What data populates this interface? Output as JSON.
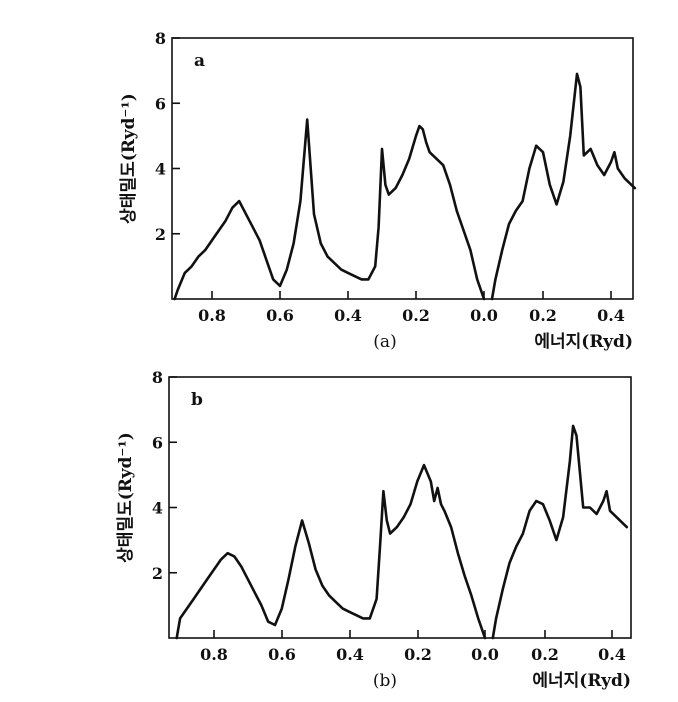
{
  "chart_data": [
    {
      "type": "line",
      "panel_label": "a",
      "caption": "(a)",
      "xlabel": "에너지(Ryd)",
      "ylabel": "상태밀도(Ryd⁻¹)",
      "ylim": [
        0,
        8
      ],
      "yticks": [
        {
          "value": 2,
          "label": "2"
        },
        {
          "value": 4,
          "label": "4"
        },
        {
          "value": 6,
          "label": "6"
        },
        {
          "value": 8,
          "label": "8"
        }
      ],
      "xticks": [
        {
          "label": "0.8"
        },
        {
          "label": "0.6"
        },
        {
          "label": "0.4"
        },
        {
          "label": "0.2"
        },
        {
          "label": "0.0"
        },
        {
          "label": "0.2"
        },
        {
          "label": "0.4"
        }
      ],
      "segments": [
        {
          "x": [
            -0.91,
            -0.9,
            -0.88,
            -0.86,
            -0.84,
            -0.82,
            -0.8,
            -0.78,
            -0.76,
            -0.74,
            -0.72,
            -0.7,
            -0.68,
            -0.66,
            -0.64,
            -0.62,
            -0.6,
            -0.58,
            -0.56,
            -0.54,
            -0.52,
            -0.5,
            -0.48,
            -0.46,
            -0.44,
            -0.42,
            -0.4,
            -0.38,
            -0.36,
            -0.34,
            -0.32,
            -0.31,
            -0.3,
            -0.29,
            -0.28,
            -0.26,
            -0.24,
            -0.22,
            -0.2,
            -0.19,
            -0.18,
            -0.17,
            -0.16,
            -0.14,
            -0.12,
            -0.1,
            -0.08,
            -0.06,
            -0.04,
            -0.02,
            0.0
          ],
          "y": [
            0.0,
            0.3,
            0.8,
            1.0,
            1.3,
            1.5,
            1.8,
            2.1,
            2.4,
            2.8,
            3.0,
            2.6,
            2.2,
            1.8,
            1.2,
            0.6,
            0.4,
            0.9,
            1.7,
            3.0,
            5.5,
            2.6,
            1.7,
            1.3,
            1.1,
            0.9,
            0.8,
            0.7,
            0.6,
            0.6,
            1.0,
            2.2,
            4.6,
            3.5,
            3.2,
            3.4,
            3.8,
            4.3,
            5.0,
            5.3,
            5.2,
            4.8,
            4.5,
            4.3,
            4.1,
            3.5,
            2.7,
            2.1,
            1.5,
            0.6,
            0.0
          ]
        },
        {
          "x": [
            0.05,
            0.06,
            0.08,
            0.1,
            0.12,
            0.14,
            0.16,
            0.18,
            0.2,
            0.22,
            0.24,
            0.26,
            0.28,
            0.3,
            0.31,
            0.32,
            0.34,
            0.36,
            0.38,
            0.4,
            0.41,
            0.42,
            0.44,
            0.46,
            0.47
          ],
          "y": [
            0.0,
            0.6,
            1.5,
            2.3,
            2.7,
            3.0,
            4.0,
            4.7,
            4.5,
            3.5,
            2.9,
            3.6,
            5.0,
            6.9,
            6.5,
            4.4,
            4.6,
            4.1,
            3.8,
            4.2,
            4.5,
            4.0,
            3.7,
            3.5,
            3.4
          ]
        }
      ]
    },
    {
      "type": "line",
      "panel_label": "b",
      "caption": "(b)",
      "xlabel": "에너지(Ryd)",
      "ylabel": "상태밀도(Ryd⁻¹)",
      "ylim": [
        0,
        8
      ],
      "yticks": [
        {
          "value": 2,
          "label": "2"
        },
        {
          "value": 4,
          "label": "4"
        },
        {
          "value": 6,
          "label": "6"
        },
        {
          "value": 8,
          "label": "8"
        }
      ],
      "xticks": [
        {
          "label": "0.8"
        },
        {
          "label": "0.6"
        },
        {
          "label": "0.4"
        },
        {
          "label": "0.2"
        },
        {
          "label": "0.0"
        },
        {
          "label": "0.2"
        },
        {
          "label": "0.4"
        }
      ],
      "segments": [
        {
          "x": [
            -0.91,
            -0.9,
            -0.88,
            -0.86,
            -0.84,
            -0.82,
            -0.8,
            -0.78,
            -0.76,
            -0.74,
            -0.72,
            -0.7,
            -0.68,
            -0.66,
            -0.64,
            -0.62,
            -0.6,
            -0.58,
            -0.56,
            -0.54,
            -0.52,
            -0.5,
            -0.48,
            -0.46,
            -0.44,
            -0.42,
            -0.4,
            -0.38,
            -0.36,
            -0.34,
            -0.32,
            -0.31,
            -0.3,
            -0.29,
            -0.28,
            -0.26,
            -0.24,
            -0.22,
            -0.2,
            -0.18,
            -0.16,
            -0.15,
            -0.14,
            -0.13,
            -0.12,
            -0.1,
            -0.08,
            -0.06,
            -0.04,
            -0.02,
            0.0
          ],
          "y": [
            0.0,
            0.6,
            0.9,
            1.2,
            1.5,
            1.8,
            2.1,
            2.4,
            2.6,
            2.5,
            2.2,
            1.8,
            1.4,
            1.0,
            0.5,
            0.4,
            0.9,
            1.8,
            2.8,
            3.6,
            2.9,
            2.1,
            1.6,
            1.3,
            1.1,
            0.9,
            0.8,
            0.7,
            0.6,
            0.6,
            1.2,
            2.8,
            4.5,
            3.6,
            3.2,
            3.4,
            3.7,
            4.1,
            4.8,
            5.3,
            4.8,
            4.2,
            4.6,
            4.1,
            3.9,
            3.4,
            2.6,
            1.9,
            1.3,
            0.6,
            0.0
          ]
        },
        {
          "x": [
            0.05,
            0.06,
            0.08,
            0.1,
            0.12,
            0.14,
            0.16,
            0.18,
            0.2,
            0.22,
            0.24,
            0.26,
            0.28,
            0.29,
            0.3,
            0.32,
            0.34,
            0.36,
            0.38,
            0.39,
            0.4,
            0.42,
            0.44,
            0.45
          ],
          "y": [
            0.0,
            0.6,
            1.5,
            2.3,
            2.8,
            3.2,
            3.9,
            4.2,
            4.1,
            3.6,
            3.0,
            3.7,
            5.4,
            6.5,
            6.2,
            4.0,
            4.0,
            3.8,
            4.2,
            4.5,
            3.9,
            3.7,
            3.5,
            3.4
          ]
        }
      ]
    }
  ]
}
